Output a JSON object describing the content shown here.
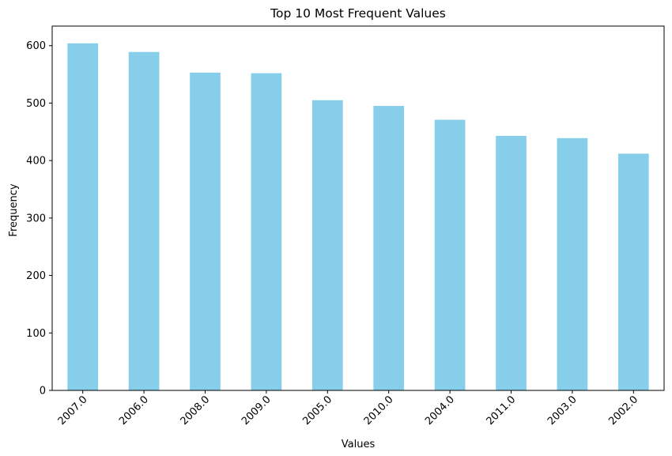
{
  "chart_data": {
    "type": "bar",
    "title": "Top 10 Most Frequent Values",
    "xlabel": "Values",
    "ylabel": "Frequency",
    "categories": [
      "2007.0",
      "2006.0",
      "2008.0",
      "2009.0",
      "2005.0",
      "2010.0",
      "2004.0",
      "2011.0",
      "2003.0",
      "2002.0"
    ],
    "values": [
      604,
      589,
      553,
      552,
      505,
      495,
      471,
      443,
      439,
      412
    ],
    "yticks": [
      0,
      100,
      200,
      300,
      400,
      500,
      600
    ],
    "ylim": [
      0,
      634
    ],
    "grid": false,
    "bar_color": "#87ceeb"
  }
}
